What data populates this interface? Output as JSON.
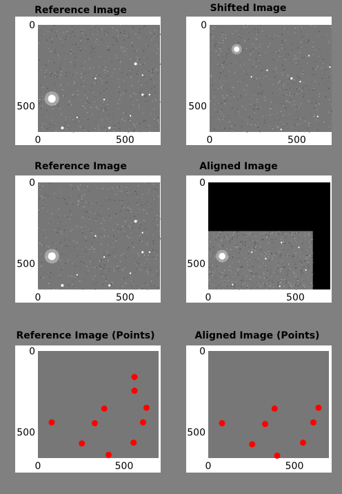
{
  "chart_data": [
    {
      "id": "p1",
      "type": "image",
      "title": "Reference Image",
      "image": "starfield",
      "background": "#777777",
      "xlim": [
        0,
        700
      ],
      "ylim": [
        0,
        660
      ],
      "xticks": [
        {
          "value": 0,
          "label": "0"
        },
        {
          "value": 500,
          "label": "500"
        }
      ],
      "yticks": [
        {
          "value": 0,
          "label": "0"
        },
        {
          "value": 500,
          "label": "500"
        }
      ],
      "stars": [
        [
          80,
          455,
          14
        ],
        [
          140,
          635,
          5
        ],
        [
          410,
          635,
          4
        ],
        [
          560,
          240,
          5
        ],
        [
          600,
          430,
          4
        ],
        [
          330,
          330,
          3
        ],
        [
          600,
          310,
          3
        ],
        [
          380,
          460,
          3
        ],
        [
          225,
          570,
          2
        ],
        [
          530,
          560,
          3
        ],
        [
          640,
          430,
          3
        ]
      ]
    },
    {
      "id": "p2",
      "type": "image",
      "title": "Shifted Image",
      "image": "starfield",
      "background": "#777777",
      "xlim": [
        0,
        700
      ],
      "ylim": [
        0,
        660
      ],
      "xticks": [
        {
          "value": 0,
          "label": "0"
        },
        {
          "value": 500,
          "label": "500"
        }
      ],
      "yticks": [
        {
          "value": 0,
          "label": "0"
        },
        {
          "value": 500,
          "label": "500"
        }
      ],
      "stars": [
        [
          155,
          150,
          10
        ],
        [
          470,
          330,
          4
        ],
        [
          620,
          565,
          3
        ],
        [
          410,
          645,
          3
        ],
        [
          330,
          280,
          3
        ],
        [
          690,
          260,
          3
        ],
        [
          520,
          350,
          3
        ],
        [
          240,
          320,
          2
        ],
        [
          570,
          190,
          2
        ]
      ]
    },
    {
      "id": "p3",
      "type": "image",
      "title": "Reference Image",
      "image": "starfield",
      "background": "#777777",
      "xlim": [
        0,
        700
      ],
      "ylim": [
        0,
        660
      ],
      "xticks": [
        {
          "value": 0,
          "label": "0"
        },
        {
          "value": 500,
          "label": "500"
        }
      ],
      "yticks": [
        {
          "value": 0,
          "label": "0"
        },
        {
          "value": 500,
          "label": "500"
        }
      ],
      "stars": [
        [
          80,
          455,
          14
        ],
        [
          140,
          635,
          5
        ],
        [
          410,
          635,
          4
        ],
        [
          560,
          240,
          5
        ],
        [
          600,
          430,
          4
        ],
        [
          330,
          330,
          3
        ],
        [
          600,
          310,
          3
        ],
        [
          380,
          460,
          3
        ],
        [
          225,
          570,
          2
        ],
        [
          530,
          560,
          3
        ],
        [
          640,
          430,
          3
        ]
      ]
    },
    {
      "id": "p4",
      "type": "image",
      "title": "Aligned Image",
      "image": "aligned",
      "background": "#000000",
      "xlim": [
        0,
        700
      ],
      "ylim": [
        0,
        660
      ],
      "valid_region": {
        "x": [
          0,
          600
        ],
        "y": [
          300,
          660
        ]
      },
      "xticks": [
        {
          "value": 0,
          "label": "0"
        },
        {
          "value": 500,
          "label": "500"
        }
      ],
      "yticks": [
        {
          "value": 0,
          "label": "0"
        },
        {
          "value": 500,
          "label": "500"
        }
      ],
      "stars": [
        [
          80,
          455,
          12
        ],
        [
          410,
          640,
          3
        ],
        [
          330,
          470,
          3
        ],
        [
          420,
          370,
          3
        ],
        [
          520,
          400,
          2
        ],
        [
          250,
          430,
          2
        ],
        [
          560,
          540,
          2
        ],
        [
          140,
          630,
          3
        ]
      ]
    },
    {
      "id": "p5",
      "type": "scatter",
      "title": "Reference Image  (Points)",
      "background": "#777777",
      "marker_color": "#ff0000",
      "xlim": [
        0,
        700
      ],
      "ylim": [
        0,
        660
      ],
      "xticks": [
        {
          "value": 0,
          "label": "0"
        },
        {
          "value": 500,
          "label": "500"
        }
      ],
      "yticks": [
        {
          "value": 0,
          "label": "0"
        },
        {
          "value": 500,
          "label": "500"
        }
      ],
      "points": [
        [
          560,
          160
        ],
        [
          560,
          245
        ],
        [
          385,
          355
        ],
        [
          630,
          350
        ],
        [
          80,
          440
        ],
        [
          330,
          445
        ],
        [
          610,
          440
        ],
        [
          255,
          570
        ],
        [
          555,
          565
        ],
        [
          410,
          640
        ]
      ]
    },
    {
      "id": "p6",
      "type": "scatter",
      "title": "Aligned Image (Points)",
      "background": "#777777",
      "marker_color": "#ff0000",
      "xlim": [
        0,
        700
      ],
      "ylim": [
        0,
        660
      ],
      "xticks": [
        {
          "value": 0,
          "label": "0"
        },
        {
          "value": 500,
          "label": "500"
        }
      ],
      "yticks": [
        {
          "value": 0,
          "label": "0"
        },
        {
          "value": 500,
          "label": "500"
        }
      ],
      "points": [
        [
          385,
          355
        ],
        [
          640,
          350
        ],
        [
          80,
          445
        ],
        [
          330,
          450
        ],
        [
          610,
          440
        ],
        [
          255,
          575
        ],
        [
          550,
          565
        ],
        [
          400,
          645
        ]
      ]
    }
  ]
}
